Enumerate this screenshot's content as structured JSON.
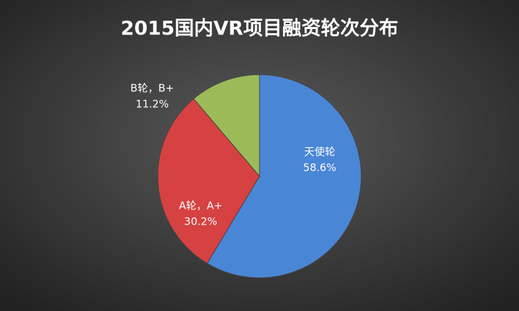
{
  "chart_data": {
    "type": "pie",
    "title": "2015国内VR项目融资轮次分布",
    "categories": [
      "天使轮",
      "A轮，A+",
      "B轮，B+"
    ],
    "values": [
      58.6,
      30.2,
      11.2
    ],
    "value_labels": [
      "58.6%",
      "30.2%",
      "11.2%"
    ],
    "colors": [
      "#4a86d6",
      "#d64141",
      "#9bbb59"
    ]
  }
}
